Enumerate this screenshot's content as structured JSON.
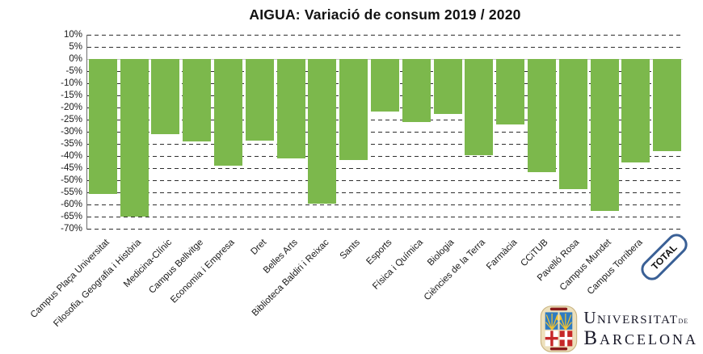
{
  "title": "AIGUA: Variació de consum 2019 / 2020",
  "chart_data": {
    "type": "bar",
    "title": "AIGUA: Variació de consum 2019 / 2020",
    "categories": [
      "Campus Plaça Universitat",
      "Filosofia, Geografia i Història",
      "Medicina-Clínic",
      "Campus Bellvitge",
      "Economia i Empresa",
      "Dret",
      "Belles Arts",
      "Biblioteca Baldiri i Reixac",
      "Sants",
      "Esports",
      "Física i Química",
      "Biologia",
      "Ciències de la Terra",
      "Farmàcia",
      "CCiTUB",
      "Pavelló Rosa",
      "Campus Mundet",
      "Campus Torribera",
      "TOTAL"
    ],
    "values": [
      -55.5,
      -65,
      -31,
      -34,
      -44,
      -33.5,
      -41,
      -59.5,
      -41.5,
      -21.5,
      -26,
      -22.5,
      -39.5,
      -27,
      -46.5,
      -53.5,
      -62.5,
      -42.5,
      -38
    ],
    "unit": "%",
    "ylim": [
      -70,
      10
    ],
    "ytick_step": 5,
    "ytick_labels": [
      "10%",
      "5%",
      "0%",
      "-5%",
      "-10%",
      "-15%",
      "-20%",
      "-25%",
      "-30%",
      "-35%",
      "-40%",
      "-45%",
      "-50%",
      "-55%",
      "-60%",
      "-65%",
      "-70%"
    ],
    "xlabel": "",
    "ylabel": "",
    "legend_position": "none",
    "grid": "dashed horizontal gridlines every 5%",
    "bar_color": "#7CB84C",
    "last_category_style": "rotated rounded box, blue border"
  },
  "total_box": {
    "label": "TOTAL",
    "border_color": "#3A6096"
  },
  "logo": {
    "word1": "Universitat",
    "word2": "de",
    "word3": "Barcelona",
    "crest_blue": "#2E7BC1",
    "crest_red": "#C62828",
    "crest_cream": "#EDE0BC"
  }
}
